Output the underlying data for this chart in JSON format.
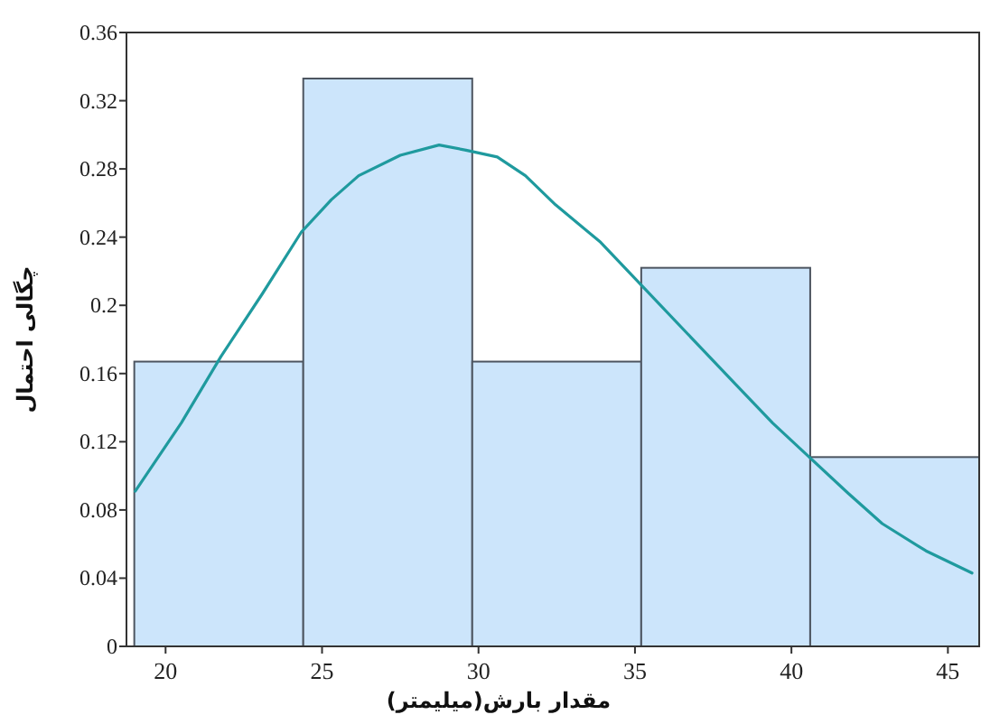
{
  "chart_data": {
    "type": "histogram",
    "xlabel": "مقدار بارش(میلیمتر)",
    "ylabel": "چگالی احتمال",
    "xlim": [
      18.75,
      46
    ],
    "ylim": [
      0,
      0.36
    ],
    "xticks": [
      20,
      25,
      30,
      35,
      40,
      45
    ],
    "yticks": [
      0,
      0.04,
      0.08,
      0.12,
      0.16,
      0.2,
      0.24,
      0.28,
      0.32,
      0.36
    ],
    "grid": false,
    "series": [
      {
        "color": "#cce5fb",
        "bins": [
          19,
          24.4,
          29.8,
          35.2,
          40.6,
          46
        ],
        "values": [
          0.167,
          0.333,
          0.167,
          0.222,
          0.111
        ]
      },
      {
        "type": "line",
        "color": "#1f9a9e",
        "x": [
          19.03,
          20.5,
          21.77,
          23.1,
          24.34,
          25.3,
          26.17,
          27.5,
          28.74,
          29.6,
          30.6,
          31.5,
          32.46,
          33.9,
          35.3,
          36.8,
          38.2,
          39.4,
          40.57,
          41.8,
          42.9,
          44.3,
          45.77
        ],
        "values": [
          0.091,
          0.131,
          0.17,
          0.207,
          0.243,
          0.262,
          0.276,
          0.288,
          0.294,
          0.291,
          0.287,
          0.276,
          0.259,
          0.237,
          0.21,
          0.181,
          0.154,
          0.131,
          0.111,
          0.09,
          0.072,
          0.056,
          0.043
        ]
      }
    ]
  }
}
